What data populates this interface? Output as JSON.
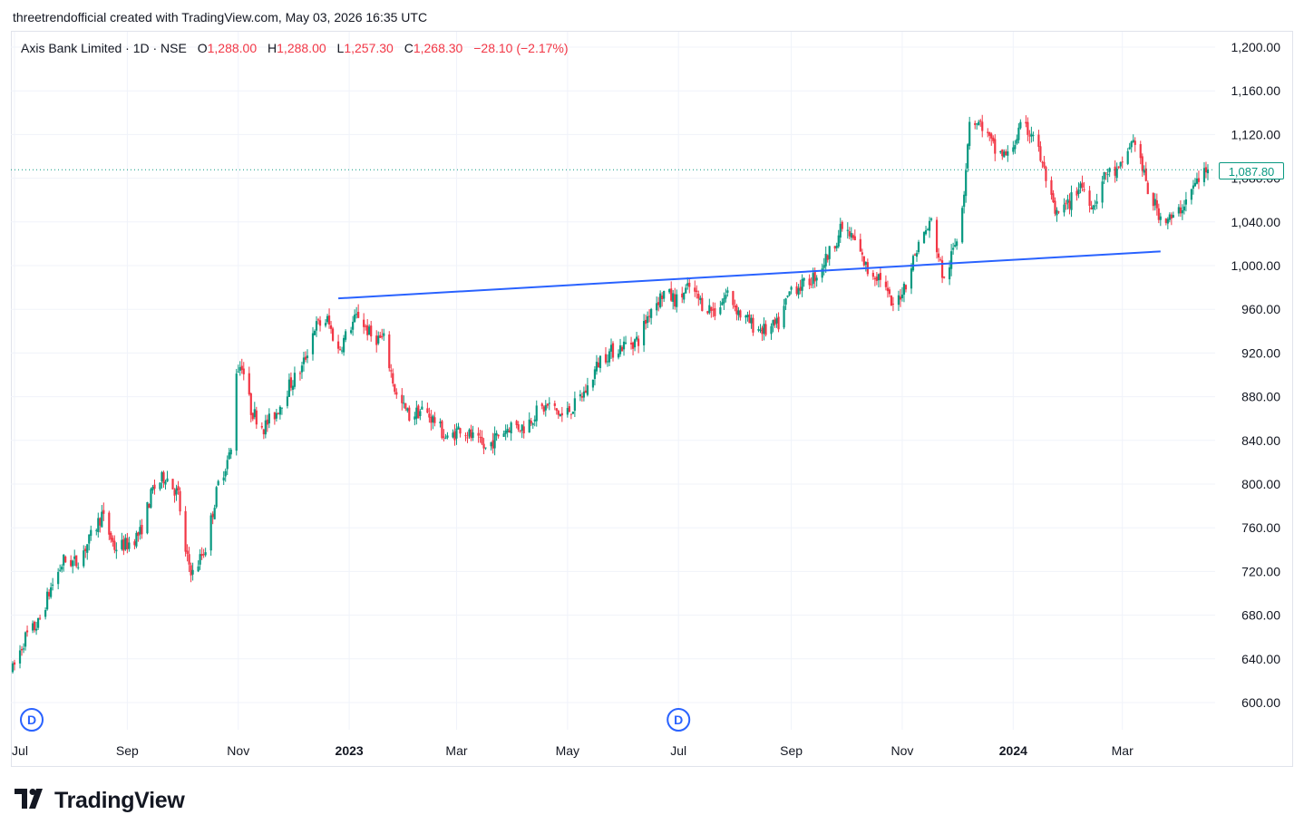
{
  "attribution": "threetrendofficial created with TradingView.com, May 03, 2026 16:35 UTC",
  "legend": {
    "symbol": "Axis Bank Limited · 1D · NSE",
    "open_label": "O",
    "open": "1,288.00",
    "high_label": "H",
    "high": "1,288.00",
    "low_label": "L",
    "low": "1,257.30",
    "close_label": "C",
    "close": "1,268.30",
    "change": "−28.10 (−2.17%)"
  },
  "last_price_badge": "1,087.80",
  "logo": {
    "icon": "tradingview-logo-icon",
    "text": "TradingView"
  },
  "colors": {
    "up": "#089981",
    "down": "#f23645",
    "trendline": "#2962ff",
    "dividend": "#2962ff"
  },
  "chart_data": {
    "type": "candlestick",
    "interval": "1D",
    "y_axis_labels": [
      "1,200.00",
      "1,160.00",
      "1,120.00",
      "1,080.00",
      "1,040.00",
      "1,000.00",
      "960.00",
      "920.00",
      "880.00",
      "840.00",
      "800.00",
      "760.00",
      "720.00",
      "680.00",
      "640.00",
      "600.00"
    ],
    "y_axis_values": [
      1200,
      1160,
      1120,
      1080,
      1040,
      1000,
      960,
      920,
      880,
      840,
      800,
      760,
      720,
      680,
      640,
      600
    ],
    "ylim": [
      590,
      1215
    ],
    "x_axis_labels": [
      {
        "label": "Jul",
        "date": "2022-07-01",
        "bold": false
      },
      {
        "label": "Sep",
        "date": "2022-09-01",
        "bold": false
      },
      {
        "label": "Nov",
        "date": "2022-11-01",
        "bold": false
      },
      {
        "label": "2023",
        "date": "2023-01-01",
        "bold": true
      },
      {
        "label": "Mar",
        "date": "2023-03-01",
        "bold": false
      },
      {
        "label": "May",
        "date": "2023-05-01",
        "bold": false
      },
      {
        "label": "Jul",
        "date": "2023-07-01",
        "bold": false
      },
      {
        "label": "Sep",
        "date": "2023-09-01",
        "bold": false
      },
      {
        "label": "Nov",
        "date": "2023-11-01",
        "bold": false
      },
      {
        "label": "2024",
        "date": "2024-01-01",
        "bold": true
      },
      {
        "label": "Mar",
        "date": "2024-03-01",
        "bold": false
      }
    ],
    "xlim": [
      "2022-06-29",
      "2024-04-21"
    ],
    "price_path": [
      [
        "2022-06-30",
        630
      ],
      [
        "2022-07-07",
        660
      ],
      [
        "2022-07-14",
        672
      ],
      [
        "2022-07-21",
        705
      ],
      [
        "2022-07-28",
        730
      ],
      [
        "2022-08-04",
        728
      ],
      [
        "2022-08-11",
        748
      ],
      [
        "2022-08-18",
        772
      ],
      [
        "2022-08-25",
        742
      ],
      [
        "2022-09-01",
        745
      ],
      [
        "2022-09-08",
        755
      ],
      [
        "2022-09-15",
        795
      ],
      [
        "2022-09-22",
        808
      ],
      [
        "2022-09-29",
        790
      ],
      [
        "2022-10-03",
        735
      ],
      [
        "2022-10-07",
        718
      ],
      [
        "2022-10-14",
        742
      ],
      [
        "2022-10-21",
        800
      ],
      [
        "2022-10-28",
        830
      ],
      [
        "2022-10-31",
        905
      ],
      [
        "2022-11-03",
        910
      ],
      [
        "2022-11-08",
        868
      ],
      [
        "2022-11-15",
        852
      ],
      [
        "2022-11-22",
        866
      ],
      [
        "2022-11-29",
        890
      ],
      [
        "2022-12-06",
        906
      ],
      [
        "2022-12-13",
        944
      ],
      [
        "2022-12-20",
        950
      ],
      [
        "2022-12-26",
        922
      ],
      [
        "2023-01-02",
        945
      ],
      [
        "2023-01-06",
        955
      ],
      [
        "2023-01-13",
        935
      ],
      [
        "2023-01-20",
        932
      ],
      [
        "2023-01-27",
        880
      ],
      [
        "2023-02-03",
        862
      ],
      [
        "2023-02-10",
        868
      ],
      [
        "2023-02-17",
        858
      ],
      [
        "2023-02-24",
        840
      ],
      [
        "2023-03-03",
        852
      ],
      [
        "2023-03-10",
        842
      ],
      [
        "2023-03-17",
        832
      ],
      [
        "2023-03-24",
        845
      ],
      [
        "2023-03-31",
        854
      ],
      [
        "2023-04-07",
        852
      ],
      [
        "2023-04-14",
        866
      ],
      [
        "2023-04-21",
        872
      ],
      [
        "2023-04-28",
        862
      ],
      [
        "2023-05-05",
        872
      ],
      [
        "2023-05-12",
        888
      ],
      [
        "2023-05-19",
        915
      ],
      [
        "2023-05-26",
        922
      ],
      [
        "2023-06-02",
        928
      ],
      [
        "2023-06-09",
        932
      ],
      [
        "2023-06-16",
        962
      ],
      [
        "2023-06-23",
        975
      ],
      [
        "2023-06-30",
        968
      ],
      [
        "2023-07-07",
        980
      ],
      [
        "2023-07-14",
        965
      ],
      [
        "2023-07-21",
        958
      ],
      [
        "2023-07-28",
        975
      ],
      [
        "2023-08-04",
        955
      ],
      [
        "2023-08-11",
        945
      ],
      [
        "2023-08-18",
        940
      ],
      [
        "2023-08-25",
        946
      ],
      [
        "2023-09-01",
        980
      ],
      [
        "2023-09-08",
        982
      ],
      [
        "2023-09-15",
        992
      ],
      [
        "2023-09-22",
        1012
      ],
      [
        "2023-09-29",
        1035
      ],
      [
        "2023-10-06",
        1022
      ],
      [
        "2023-10-13",
        995
      ],
      [
        "2023-10-20",
        990
      ],
      [
        "2023-10-27",
        960
      ],
      [
        "2023-11-03",
        985
      ],
      [
        "2023-11-10",
        1020
      ],
      [
        "2023-11-17",
        1040
      ],
      [
        "2023-11-24",
        985
      ],
      [
        "2023-12-01",
        1025
      ],
      [
        "2023-12-05",
        1070
      ],
      [
        "2023-12-08",
        1135
      ],
      [
        "2023-12-15",
        1128
      ],
      [
        "2023-12-22",
        1105
      ],
      [
        "2023-12-29",
        1100
      ],
      [
        "2024-01-05",
        1125
      ],
      [
        "2024-01-12",
        1122
      ],
      [
        "2024-01-19",
        1080
      ],
      [
        "2024-01-24",
        1045
      ],
      [
        "2024-01-31",
        1055
      ],
      [
        "2024-02-07",
        1075
      ],
      [
        "2024-02-14",
        1055
      ],
      [
        "2024-02-21",
        1085
      ],
      [
        "2024-02-28",
        1085
      ],
      [
        "2024-03-05",
        1110
      ],
      [
        "2024-03-08",
        1115
      ],
      [
        "2024-03-15",
        1068
      ],
      [
        "2024-03-22",
        1045
      ],
      [
        "2024-03-29",
        1042
      ],
      [
        "2024-04-05",
        1060
      ],
      [
        "2024-04-12",
        1080
      ],
      [
        "2024-04-17",
        1088
      ]
    ],
    "trendline": {
      "start": [
        "2022-12-26",
        970
      ],
      "end": [
        "2024-03-22",
        1013
      ]
    },
    "dividend_markers": [
      {
        "label": "D",
        "date": "2022-07-01"
      },
      {
        "label": "D",
        "date": "2023-07-01"
      }
    ],
    "last_price": 1087.8
  }
}
